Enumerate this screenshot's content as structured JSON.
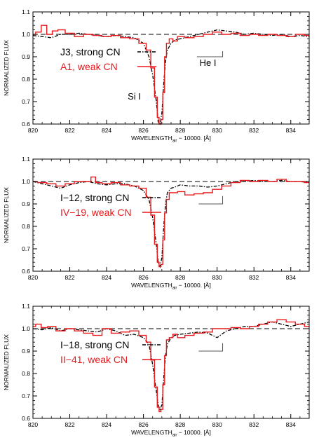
{
  "colors": {
    "strong": "#000000",
    "weak": "#e8191c",
    "axis": "#000000",
    "refline": "#000000",
    "marker": "#555555"
  },
  "chart_data": [
    {
      "type": "line",
      "xlabel": "WAVELENGTH",
      "xlabel_sub": "air",
      "xlabel_suffix": " − 10000. [Å]",
      "ylabel": "NORMALIZED FLUX",
      "xlim": [
        820,
        835
      ],
      "ylim": [
        0.6,
        1.1
      ],
      "x_ticks": [
        820,
        822,
        824,
        826,
        828,
        830,
        832,
        834
      ],
      "x_tick_labels": [
        "820",
        "822",
        "824",
        "826",
        "828",
        "830",
        "832",
        "834"
      ],
      "y_ticks": [
        0.6,
        0.7,
        0.8,
        0.9,
        1.0,
        1.1
      ],
      "y_tick_labels": [
        "0.6",
        "0.7",
        "0.8",
        "0.9",
        "1.0",
        "1.1"
      ],
      "reference_line": 1.0,
      "legend_entries": [
        {
          "label": "J3, strong CN",
          "color": "#000000",
          "style": "dashdot"
        },
        {
          "label": "A1, weak CN",
          "color": "#e8191c",
          "style": "solid"
        }
      ],
      "annotations": [
        {
          "text": "Si I",
          "x": 825.5,
          "y": 0.71
        },
        {
          "text": "He I",
          "x": 829.5,
          "y": 0.86
        }
      ],
      "he_marker": {
        "x_start": 828.9,
        "x_end": 830.3,
        "y_low": 0.9,
        "y_high": 0.925
      },
      "series": [
        {
          "name": "J3, strong CN",
          "color": "#000000",
          "style": "dashdot",
          "x": [
            820,
            820.5,
            821,
            821.5,
            822,
            822.5,
            823,
            823.5,
            824,
            824.5,
            825,
            825.5,
            826,
            826.3,
            826.5,
            826.7,
            826.8,
            826.9,
            827.0,
            827.1,
            827.2,
            827.3,
            827.5,
            827.7,
            828,
            828.5,
            829,
            829.5,
            830,
            830.5,
            831,
            831.5,
            832,
            832.5,
            833,
            833.5,
            834,
            834.5,
            835
          ],
          "y": [
            0.995,
            0.99,
            0.985,
            1.0,
            1.0,
            1.005,
            1.0,
            0.995,
            0.99,
            0.995,
            0.99,
            0.985,
            0.96,
            0.9,
            0.82,
            0.7,
            0.61,
            0.6,
            0.65,
            0.78,
            0.88,
            0.93,
            0.96,
            0.975,
            0.98,
            0.99,
            1.0,
            1.01,
            1.02,
            1.015,
            1.01,
            1.0,
            1.005,
            1.0,
            0.995,
            1.0,
            0.99,
            0.995,
            0.99
          ]
        },
        {
          "name": "A1, weak CN",
          "color": "#e8191c",
          "style": "solid",
          "x": [
            820,
            820.3,
            820.6,
            820.9,
            821.2,
            821.5,
            822,
            822.5,
            823,
            823.5,
            824,
            824.5,
            825,
            825.5,
            826,
            826.3,
            826.5,
            826.7,
            826.8,
            826.9,
            827.0,
            827.1,
            827.2,
            827.3,
            827.5,
            827.7,
            828,
            828.5,
            829,
            829.5,
            830,
            830.5,
            831,
            831.5,
            832,
            832.5,
            833,
            833.5,
            834,
            834.5,
            835
          ],
          "y": [
            1.0,
            1.01,
            1.04,
            1.0,
            1.015,
            1.02,
            1.005,
            0.99,
            1.0,
            0.995,
            0.99,
            0.995,
            0.985,
            0.98,
            0.96,
            0.93,
            0.85,
            0.72,
            0.63,
            0.6,
            0.62,
            0.74,
            0.9,
            0.96,
            0.98,
            0.97,
            0.99,
            0.985,
            0.99,
            1.0,
            1.01,
            1.0,
            1.005,
            0.995,
            1.0,
            0.995,
            1.0,
            0.995,
            0.99,
            1.0,
            0.995
          ]
        }
      ]
    },
    {
      "type": "line",
      "xlabel": "WAVELENGTH",
      "xlabel_sub": "air",
      "xlabel_suffix": " − 10000. [Å]",
      "ylabel": "NORMALIZED FLUX",
      "xlim": [
        820,
        835
      ],
      "ylim": [
        0.6,
        1.1
      ],
      "x_ticks": [
        820,
        822,
        824,
        826,
        828,
        830,
        832,
        834
      ],
      "x_tick_labels": [
        "820",
        "822",
        "824",
        "826",
        "828",
        "830",
        "832",
        "834"
      ],
      "y_ticks": [
        0.6,
        0.7,
        0.8,
        0.9,
        1.0,
        1.1
      ],
      "y_tick_labels": [
        "0.6",
        "0.7",
        "0.8",
        "0.9",
        "1.0",
        "1.1"
      ],
      "reference_line": 1.0,
      "legend_entries": [
        {
          "label": "I−12, strong CN",
          "color": "#000000",
          "style": "dashdot"
        },
        {
          "label": "IV−19, weak CN",
          "color": "#e8191c",
          "style": "solid"
        }
      ],
      "annotations": [],
      "he_marker": {
        "x_start": 829.0,
        "x_end": 830.3,
        "y_low": 0.9,
        "y_high": 0.935
      },
      "series": [
        {
          "name": "I−12, strong CN",
          "color": "#000000",
          "style": "dashdot",
          "x": [
            820,
            820.5,
            821,
            821.5,
            822,
            822.5,
            823,
            823.5,
            824,
            824.5,
            825,
            825.5,
            826,
            826.3,
            826.5,
            826.7,
            826.8,
            826.9,
            827.0,
            827.1,
            827.2,
            827.3,
            827.5,
            827.7,
            828,
            828.5,
            829,
            829.5,
            830,
            830.5,
            831,
            831.5,
            832,
            832.5,
            833,
            833.5,
            834,
            834.5,
            835
          ],
          "y": [
            1.0,
            0.99,
            0.98,
            0.97,
            0.985,
            0.995,
            1.0,
            0.99,
            0.985,
            0.99,
            0.99,
            0.98,
            0.96,
            0.92,
            0.84,
            0.72,
            0.64,
            0.62,
            0.66,
            0.8,
            0.9,
            0.95,
            0.97,
            0.975,
            0.985,
            0.98,
            0.98,
            0.975,
            0.98,
            0.99,
            1.0,
            1.0,
            1.005,
            1.0,
            1.0,
            1.005,
            1.0,
            1.0,
            0.995
          ]
        },
        {
          "name": "IV−19, weak CN",
          "color": "#e8191c",
          "style": "solid",
          "x": [
            820,
            820.5,
            821,
            821.5,
            822,
            822.5,
            823,
            823.3,
            823.5,
            824,
            824.5,
            825,
            825.5,
            826,
            826.3,
            826.5,
            826.7,
            826.8,
            826.9,
            827.0,
            827.1,
            827.2,
            827.3,
            827.5,
            827.7,
            828,
            828.5,
            829,
            829.5,
            830,
            830.5,
            831,
            831.5,
            832,
            832.5,
            833,
            833.5,
            834,
            834.5,
            835
          ],
          "y": [
            1.0,
            0.995,
            0.99,
            0.98,
            0.99,
            1.0,
            1.0,
            1.02,
            0.995,
            0.99,
            0.995,
            0.985,
            0.98,
            0.97,
            0.93,
            0.85,
            0.72,
            0.64,
            0.62,
            0.63,
            0.74,
            0.86,
            0.92,
            0.95,
            0.95,
            0.955,
            0.94,
            0.945,
            0.95,
            0.965,
            0.98,
            0.995,
            1.005,
            1.0,
            1.005,
            1.0,
            1.01,
            1.0,
            1.0,
            0.995
          ]
        }
      ]
    },
    {
      "type": "line",
      "xlabel": "WAVELENGTH",
      "xlabel_sub": "air",
      "xlabel_suffix": " − 10000. [Å]",
      "ylabel": "NORMALIZED FLUX",
      "xlim": [
        820,
        835
      ],
      "ylim": [
        0.6,
        1.1
      ],
      "x_ticks": [
        820,
        822,
        824,
        826,
        828,
        830,
        832,
        834
      ],
      "x_tick_labels": [
        "820",
        "822",
        "824",
        "826",
        "828",
        "830",
        "832",
        "834"
      ],
      "y_ticks": [
        0.6,
        0.7,
        0.8,
        0.9,
        1.0,
        1.1
      ],
      "y_tick_labels": [
        "0.6",
        "0.7",
        "0.8",
        "0.9",
        "1.0",
        "1.1"
      ],
      "reference_line": 1.0,
      "legend_entries": [
        {
          "label": "I−18, strong CN",
          "color": "#000000",
          "style": "dashdot"
        },
        {
          "label": "II−41, weak CN",
          "color": "#e8191c",
          "style": "solid"
        }
      ],
      "annotations": [],
      "he_marker": {
        "x_start": 829.0,
        "x_end": 830.3,
        "y_low": 0.9,
        "y_high": 0.935
      },
      "series": [
        {
          "name": "I−18, strong CN",
          "color": "#000000",
          "style": "dashdot",
          "x": [
            820,
            820.5,
            821,
            821.5,
            822,
            822.5,
            823,
            823.5,
            824,
            824.5,
            825,
            825.5,
            826,
            826.3,
            826.5,
            826.7,
            826.8,
            826.9,
            827.0,
            827.1,
            827.2,
            827.3,
            827.5,
            827.7,
            828,
            828.5,
            829,
            829.5,
            830,
            830.5,
            831,
            831.5,
            832,
            832.5,
            833,
            833.5,
            834,
            834.5,
            835
          ],
          "y": [
            1.0,
            0.995,
            1.005,
            0.99,
            1.0,
            0.995,
            0.99,
            0.985,
            1.0,
            0.99,
            0.97,
            0.975,
            0.96,
            0.93,
            0.84,
            0.72,
            0.66,
            0.64,
            0.66,
            0.78,
            0.88,
            0.93,
            0.96,
            0.97,
            0.975,
            0.98,
            0.985,
            0.98,
            0.96,
            0.99,
            1.0,
            1.01,
            1.01,
            1.02,
            1.03,
            1.02,
            1.01,
            1.02,
            1.03
          ]
        },
        {
          "name": "II−41, weak CN",
          "color": "#e8191c",
          "style": "solid",
          "x": [
            820,
            820.3,
            820.6,
            821,
            821.5,
            822,
            822.5,
            823,
            823.5,
            824,
            824.5,
            825,
            825.5,
            826,
            826.3,
            826.5,
            826.7,
            826.8,
            826.9,
            827.0,
            827.1,
            827.2,
            827.3,
            827.5,
            827.7,
            828,
            828.5,
            829,
            829.5,
            830,
            830.5,
            831,
            831.5,
            832,
            832.5,
            833,
            833.5,
            834,
            834.5,
            835
          ],
          "y": [
            1.01,
            1.02,
            1.005,
            1.01,
            0.99,
            1.0,
            0.99,
            0.98,
            0.97,
            1.0,
            0.98,
            0.985,
            0.99,
            0.97,
            0.94,
            0.86,
            0.74,
            0.65,
            0.63,
            0.64,
            0.75,
            0.88,
            0.95,
            0.96,
            0.975,
            0.96,
            0.97,
            0.98,
            0.985,
            1.0,
            1.0,
            1.005,
            1.0,
            1.01,
            1.02,
            1.03,
            1.04,
            1.03,
            1.02,
            1.01
          ]
        }
      ]
    }
  ]
}
